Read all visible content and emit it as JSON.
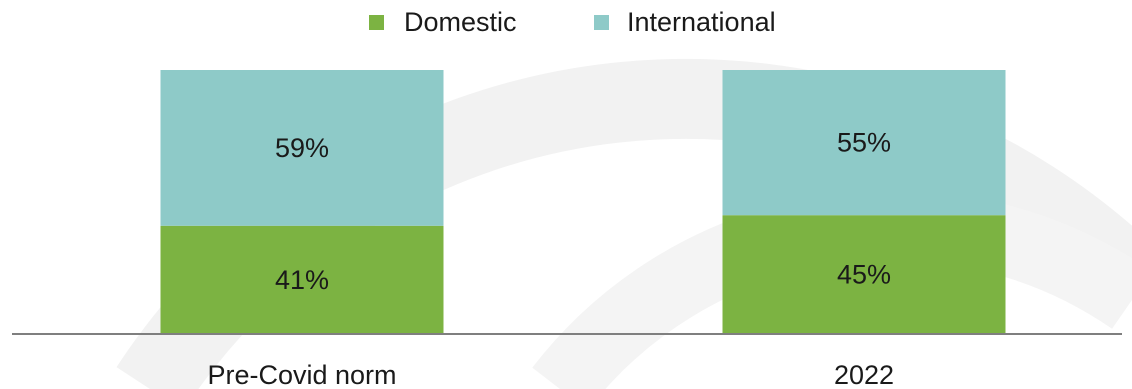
{
  "chart_data": {
    "type": "bar",
    "stacked": true,
    "percent": true,
    "categories": [
      "Pre-Covid norm",
      "2022"
    ],
    "series": [
      {
        "name": "Domestic",
        "values": [
          41,
          45
        ],
        "labels": [
          "41%",
          "45%"
        ],
        "color": "#7cb342"
      },
      {
        "name": "International",
        "values": [
          59,
          55
        ],
        "labels": [
          "59%",
          "55%"
        ],
        "color": "#8ecac8"
      }
    ],
    "ylim": [
      0,
      100
    ],
    "grid": false,
    "legend": "top-center",
    "axis_color": "#7f7f7f",
    "background_arc_color": "#f2f2f2"
  }
}
